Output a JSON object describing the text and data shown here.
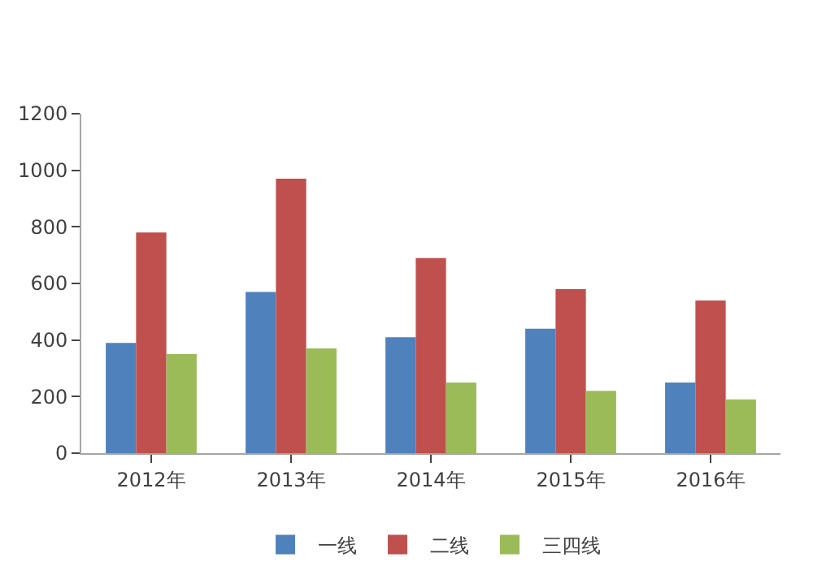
{
  "chart_data": {
    "type": "bar",
    "categories": [
      "2012年",
      "2013年",
      "2014年",
      "2015年",
      "2016年"
    ],
    "series": [
      {
        "name": "一线",
        "color": "#4f81bd",
        "values": [
          390,
          570,
          410,
          440,
          250
        ]
      },
      {
        "name": "二线",
        "color": "#c0504d",
        "values": [
          780,
          970,
          690,
          580,
          540
        ]
      },
      {
        "name": "三四线",
        "color": "#9bbb59",
        "values": [
          350,
          370,
          250,
          220,
          190
        ]
      }
    ],
    "ylim": [
      0,
      1200
    ],
    "yticks": [
      0,
      200,
      400,
      600,
      800,
      1000,
      1200
    ],
    "legend": "bottom"
  }
}
